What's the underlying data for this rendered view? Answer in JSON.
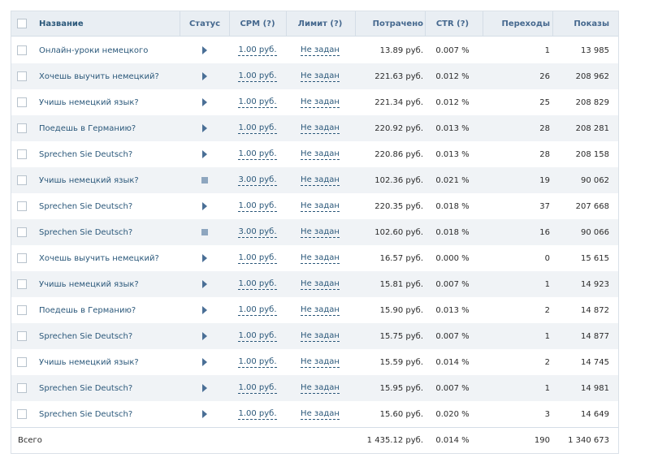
{
  "table": {
    "columns": {
      "name": "Название",
      "status": "Статус",
      "cpm": "CPM (?)",
      "limit": "Лимит (?)",
      "spent": "Потрачено",
      "ctr": "CTR (?)",
      "clicks": "Переходы",
      "views": "Показы"
    },
    "rows": [
      {
        "name": "Онлайн-уроки немецкого",
        "status": "play-icon",
        "cpm": "1.00 руб.",
        "limit": "Не задан",
        "spent": "13.89 руб.",
        "ctr": "0.007 %",
        "clicks": "1",
        "views": "13 985"
      },
      {
        "name": "Хочешь выучить немецкий?",
        "status": "play-icon",
        "cpm": "1.00 руб.",
        "limit": "Не задан",
        "spent": "221.63 руб.",
        "ctr": "0.012 %",
        "clicks": "26",
        "views": "208 962"
      },
      {
        "name": "Учишь немецкий язык?",
        "status": "play-icon",
        "cpm": "1.00 руб.",
        "limit": "Не задан",
        "spent": "221.34 руб.",
        "ctr": "0.012 %",
        "clicks": "25",
        "views": "208 829"
      },
      {
        "name": "Поедешь в Германию?",
        "status": "play-icon",
        "cpm": "1.00 руб.",
        "limit": "Не задан",
        "spent": "220.92 руб.",
        "ctr": "0.013 %",
        "clicks": "28",
        "views": "208 281"
      },
      {
        "name": "Sprechen Sie Deutsch?",
        "status": "play-icon",
        "cpm": "1.00 руб.",
        "limit": "Не задан",
        "spent": "220.86 руб.",
        "ctr": "0.013 %",
        "clicks": "28",
        "views": "208 158"
      },
      {
        "name": "Учишь немецкий язык?",
        "status": "stop-icon",
        "cpm": "3.00 руб.",
        "limit": "Не задан",
        "spent": "102.36 руб.",
        "ctr": "0.021 %",
        "clicks": "19",
        "views": "90 062"
      },
      {
        "name": "Sprechen Sie Deutsch?",
        "status": "play-icon",
        "cpm": "1.00 руб.",
        "limit": "Не задан",
        "spent": "220.35 руб.",
        "ctr": "0.018 %",
        "clicks": "37",
        "views": "207 668"
      },
      {
        "name": "Sprechen Sie Deutsch?",
        "status": "stop-icon",
        "cpm": "3.00 руб.",
        "limit": "Не задан",
        "spent": "102.60 руб.",
        "ctr": "0.018 %",
        "clicks": "16",
        "views": "90 066"
      },
      {
        "name": "Хочешь выучить немецкий?",
        "status": "play-icon",
        "cpm": "1.00 руб.",
        "limit": "Не задан",
        "spent": "16.57 руб.",
        "ctr": "0.000 %",
        "clicks": "0",
        "views": "15 615"
      },
      {
        "name": "Учишь немецкий язык?",
        "status": "play-icon",
        "cpm": "1.00 руб.",
        "limit": "Не задан",
        "spent": "15.81 руб.",
        "ctr": "0.007 %",
        "clicks": "1",
        "views": "14 923"
      },
      {
        "name": "Поедешь в Германию?",
        "status": "play-icon",
        "cpm": "1.00 руб.",
        "limit": "Не задан",
        "spent": "15.90 руб.",
        "ctr": "0.013 %",
        "clicks": "2",
        "views": "14 872"
      },
      {
        "name": "Sprechen Sie Deutsch?",
        "status": "play-icon",
        "cpm": "1.00 руб.",
        "limit": "Не задан",
        "spent": "15.75 руб.",
        "ctr": "0.007 %",
        "clicks": "1",
        "views": "14 877"
      },
      {
        "name": "Учишь немецкий язык?",
        "status": "play-icon",
        "cpm": "1.00 руб.",
        "limit": "Не задан",
        "spent": "15.59 руб.",
        "ctr": "0.014 %",
        "clicks": "2",
        "views": "14 745"
      },
      {
        "name": "Sprechen Sie Deutsch?",
        "status": "play-icon",
        "cpm": "1.00 руб.",
        "limit": "Не задан",
        "spent": "15.95 руб.",
        "ctr": "0.007 %",
        "clicks": "1",
        "views": "14 981"
      },
      {
        "name": "Sprechen Sie Deutsch?",
        "status": "play-icon",
        "cpm": "1.00 руб.",
        "limit": "Не задан",
        "spent": "15.60 руб.",
        "ctr": "0.020 %",
        "clicks": "3",
        "views": "14 649"
      }
    ],
    "totals": {
      "label": "Всего",
      "spent": "1 435.12 руб.",
      "ctr": "0.014 %",
      "clicks": "190",
      "views": "1 340 673"
    }
  }
}
